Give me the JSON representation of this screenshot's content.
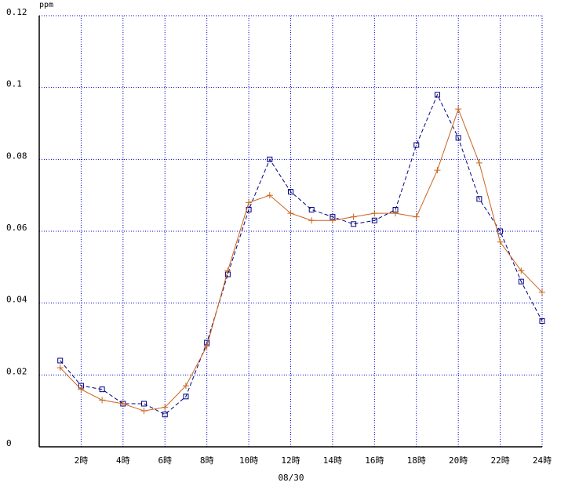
{
  "chart_data": {
    "type": "line",
    "y_unit": "ppm",
    "x_label": "08/30",
    "x": [
      1,
      2,
      3,
      4,
      5,
      6,
      7,
      8,
      9,
      10,
      11,
      12,
      13,
      14,
      15,
      16,
      17,
      18,
      19,
      20,
      21,
      22,
      23,
      24
    ],
    "series": [
      {
        "color": "#000080",
        "marker": "square",
        "dashed": true,
        "values": [
          0.024,
          0.017,
          0.016,
          0.012,
          0.012,
          0.009,
          0.014,
          0.029,
          0.048,
          0.066,
          0.08,
          0.071,
          0.066,
          0.064,
          0.062,
          0.063,
          0.066,
          0.084,
          0.098,
          0.086,
          0.069,
          0.06,
          0.046,
          0.035
        ]
      },
      {
        "color": "#c8641e",
        "marker": "plus",
        "dashed": false,
        "values": [
          0.022,
          0.016,
          0.013,
          0.012,
          0.01,
          0.011,
          0.017,
          0.028,
          0.049,
          0.068,
          0.07,
          0.065,
          0.063,
          0.063,
          0.064,
          0.065,
          0.065,
          0.064,
          0.077,
          0.094,
          0.079,
          0.057,
          0.049,
          0.043
        ]
      }
    ],
    "xlim": [
      0,
      24
    ],
    "xticks": [
      {
        "value": 2,
        "label": "2時"
      },
      {
        "value": 4,
        "label": "4時"
      },
      {
        "value": 6,
        "label": "6時"
      },
      {
        "value": 8,
        "label": "8時"
      },
      {
        "value": 10,
        "label": "10時"
      },
      {
        "value": 12,
        "label": "12時"
      },
      {
        "value": 14,
        "label": "14時"
      },
      {
        "value": 16,
        "label": "16時"
      },
      {
        "value": 18,
        "label": "18時"
      },
      {
        "value": 20,
        "label": "20時"
      },
      {
        "value": 22,
        "label": "22時"
      },
      {
        "value": 24,
        "label": "24時"
      }
    ],
    "ylim": [
      0,
      0.12
    ],
    "yticks": [
      0,
      0.02,
      0.04,
      0.06,
      0.08,
      0.1,
      0.12
    ],
    "grid": true
  }
}
